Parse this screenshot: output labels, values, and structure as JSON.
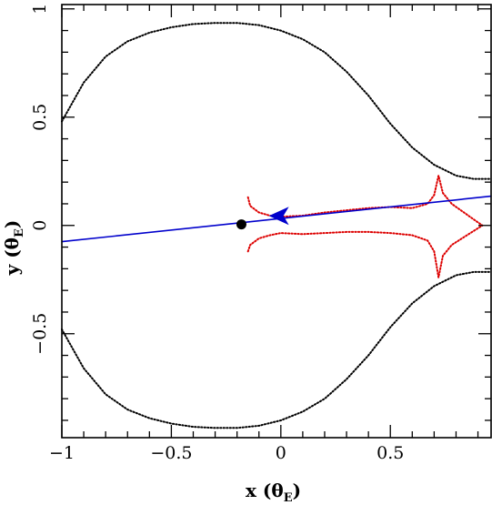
{
  "chart_data": {
    "type": "scatter",
    "title": "",
    "xlabel": "x (θ",
    "xlabel_sub": "E",
    "ylabel": "y (θ",
    "ylabel_sub": "E",
    "xlim": [
      -1.0,
      0.96
    ],
    "ylim": [
      -0.98,
      1.02
    ],
    "grid": false,
    "x_ticks": [
      {
        "value": -1,
        "label": "−1"
      },
      {
        "value": -0.5,
        "label": "−0.5"
      },
      {
        "value": 0,
        "label": "0"
      },
      {
        "value": 0.5,
        "label": "0.5"
      }
    ],
    "y_ticks": [
      {
        "value": -0.5,
        "label": "−0.5"
      },
      {
        "value": 0,
        "label": "0"
      },
      {
        "value": 0.5,
        "label": "0.5"
      },
      {
        "value": 1,
        "label": "1"
      }
    ],
    "series": [
      {
        "kind": "critical-curve-upper",
        "color": "#000000",
        "style": "dotted",
        "points": [
          [
            -1.0,
            0.48
          ],
          [
            -0.9,
            0.66
          ],
          [
            -0.8,
            0.78
          ],
          [
            -0.7,
            0.85
          ],
          [
            -0.6,
            0.89
          ],
          [
            -0.5,
            0.915
          ],
          [
            -0.4,
            0.93
          ],
          [
            -0.3,
            0.935
          ],
          [
            -0.2,
            0.935
          ],
          [
            -0.1,
            0.925
          ],
          [
            0.0,
            0.9
          ],
          [
            0.1,
            0.86
          ],
          [
            0.2,
            0.8
          ],
          [
            0.3,
            0.71
          ],
          [
            0.4,
            0.6
          ],
          [
            0.5,
            0.47
          ],
          [
            0.6,
            0.36
          ],
          [
            0.7,
            0.28
          ],
          [
            0.8,
            0.23
          ],
          [
            0.88,
            0.215
          ],
          [
            0.96,
            0.215
          ]
        ]
      },
      {
        "kind": "critical-curve-lower",
        "color": "#000000",
        "style": "dotted",
        "points": [
          [
            -1.0,
            -0.48
          ],
          [
            -0.9,
            -0.66
          ],
          [
            -0.8,
            -0.78
          ],
          [
            -0.7,
            -0.85
          ],
          [
            -0.6,
            -0.89
          ],
          [
            -0.5,
            -0.915
          ],
          [
            -0.4,
            -0.93
          ],
          [
            -0.3,
            -0.935
          ],
          [
            -0.2,
            -0.935
          ],
          [
            -0.1,
            -0.925
          ],
          [
            0.0,
            -0.9
          ],
          [
            0.1,
            -0.86
          ],
          [
            0.2,
            -0.8
          ],
          [
            0.3,
            -0.71
          ],
          [
            0.4,
            -0.6
          ],
          [
            0.5,
            -0.47
          ],
          [
            0.6,
            -0.36
          ],
          [
            0.7,
            -0.28
          ],
          [
            0.8,
            -0.23
          ],
          [
            0.88,
            -0.215
          ],
          [
            0.96,
            -0.215
          ]
        ]
      },
      {
        "kind": "caustic-upper",
        "color": "#dd0000",
        "style": "dotted",
        "points": [
          [
            -0.15,
            0.13
          ],
          [
            -0.14,
            0.09
          ],
          [
            -0.1,
            0.06
          ],
          [
            -0.05,
            0.045
          ],
          [
            0.0,
            0.04
          ],
          [
            0.1,
            0.045
          ],
          [
            0.2,
            0.06
          ],
          [
            0.3,
            0.07
          ],
          [
            0.4,
            0.08
          ],
          [
            0.5,
            0.085
          ],
          [
            0.6,
            0.08
          ],
          [
            0.67,
            0.1
          ],
          [
            0.7,
            0.14
          ],
          [
            0.72,
            0.23
          ],
          [
            0.74,
            0.15
          ],
          [
            0.78,
            0.1
          ],
          [
            0.85,
            0.05
          ],
          [
            0.92,
            0.0
          ]
        ]
      },
      {
        "kind": "caustic-lower",
        "color": "#dd0000",
        "style": "dotted",
        "points": [
          [
            -0.15,
            -0.12
          ],
          [
            -0.14,
            -0.09
          ],
          [
            -0.1,
            -0.06
          ],
          [
            -0.05,
            -0.045
          ],
          [
            0.0,
            -0.035
          ],
          [
            0.1,
            -0.04
          ],
          [
            0.2,
            -0.035
          ],
          [
            0.3,
            -0.03
          ],
          [
            0.4,
            -0.03
          ],
          [
            0.5,
            -0.035
          ],
          [
            0.6,
            -0.045
          ],
          [
            0.67,
            -0.07
          ],
          [
            0.7,
            -0.12
          ],
          [
            0.72,
            -0.24
          ],
          [
            0.74,
            -0.14
          ],
          [
            0.78,
            -0.09
          ],
          [
            0.85,
            -0.045
          ],
          [
            0.92,
            0.0
          ]
        ]
      },
      {
        "kind": "source-trajectory",
        "color": "#0000cc",
        "style": "solid",
        "points": [
          [
            -1.0,
            -0.075
          ],
          [
            0.96,
            0.135
          ]
        ]
      }
    ],
    "markers": [
      {
        "kind": "lens-primary",
        "x": -0.18,
        "y": 0.005,
        "color": "#000000",
        "size": "large"
      },
      {
        "kind": "lens-secondary",
        "x": 0.0,
        "y": 0.037,
        "color": "#0000cc",
        "size": "small"
      }
    ],
    "arrow": {
      "color": "#0000cc",
      "tip": [
        0.02,
        0.04
      ],
      "direction": "left"
    }
  }
}
